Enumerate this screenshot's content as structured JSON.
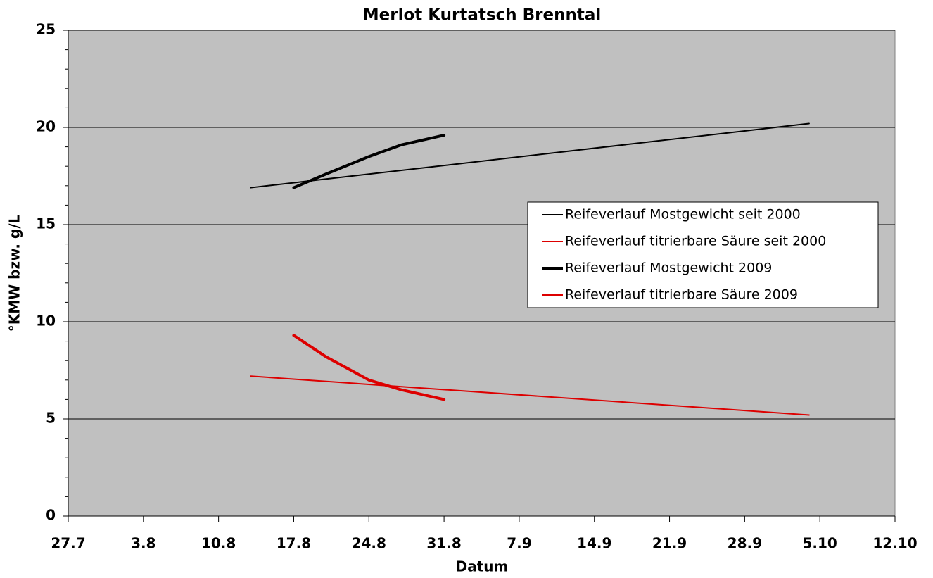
{
  "chart_data": {
    "type": "line",
    "title": "Merlot Kurtatsch Brenntal",
    "xlabel": "Datum",
    "ylabel": "°KMW bzw. g/L",
    "xlim": [
      0,
      77
    ],
    "xticks": [
      {
        "value": 0,
        "label": "27.7"
      },
      {
        "value": 7,
        "label": "3.8"
      },
      {
        "value": 14,
        "label": "10.8"
      },
      {
        "value": 21,
        "label": "17.8"
      },
      {
        "value": 28,
        "label": "24.8"
      },
      {
        "value": 35,
        "label": "31.8"
      },
      {
        "value": 42,
        "label": "7.9"
      },
      {
        "value": 49,
        "label": "14.9"
      },
      {
        "value": 56,
        "label": "21.9"
      },
      {
        "value": 63,
        "label": "28.9"
      },
      {
        "value": 70,
        "label": "5.10"
      },
      {
        "value": 77,
        "label": "12.10"
      }
    ],
    "ylim": [
      0,
      25
    ],
    "yticks": [
      0,
      5,
      10,
      15,
      20,
      25
    ],
    "yminorticks": [
      1,
      2,
      3,
      4,
      6,
      7,
      8,
      9,
      11,
      12,
      13,
      14,
      16,
      17,
      18,
      19,
      21,
      22,
      23,
      24
    ],
    "grid": true,
    "background": "#c0c0c0",
    "series": [
      {
        "name": "Reifeverlauf Mostgewicht seit 2000",
        "color": "#000000",
        "linewidth": 2,
        "x": [
          17,
          69
        ],
        "values": [
          16.9,
          20.2
        ]
      },
      {
        "name": "Reifeverlauf titrierbare Säure seit 2000",
        "color": "#dd0000",
        "linewidth": 2,
        "x": [
          17,
          69
        ],
        "values": [
          7.2,
          5.2
        ]
      },
      {
        "name": "Reifeverlauf Mostgewicht 2009",
        "color": "#000000",
        "linewidth": 4,
        "x": [
          21,
          24,
          28,
          31,
          35
        ],
        "values": [
          16.9,
          17.6,
          18.5,
          19.1,
          19.6
        ]
      },
      {
        "name": "Reifeverlauf titrierbare Säure 2009",
        "color": "#dd0000",
        "linewidth": 4,
        "x": [
          21,
          24,
          28,
          31,
          35
        ],
        "values": [
          9.3,
          8.2,
          7.0,
          6.5,
          6.0
        ]
      }
    ]
  }
}
